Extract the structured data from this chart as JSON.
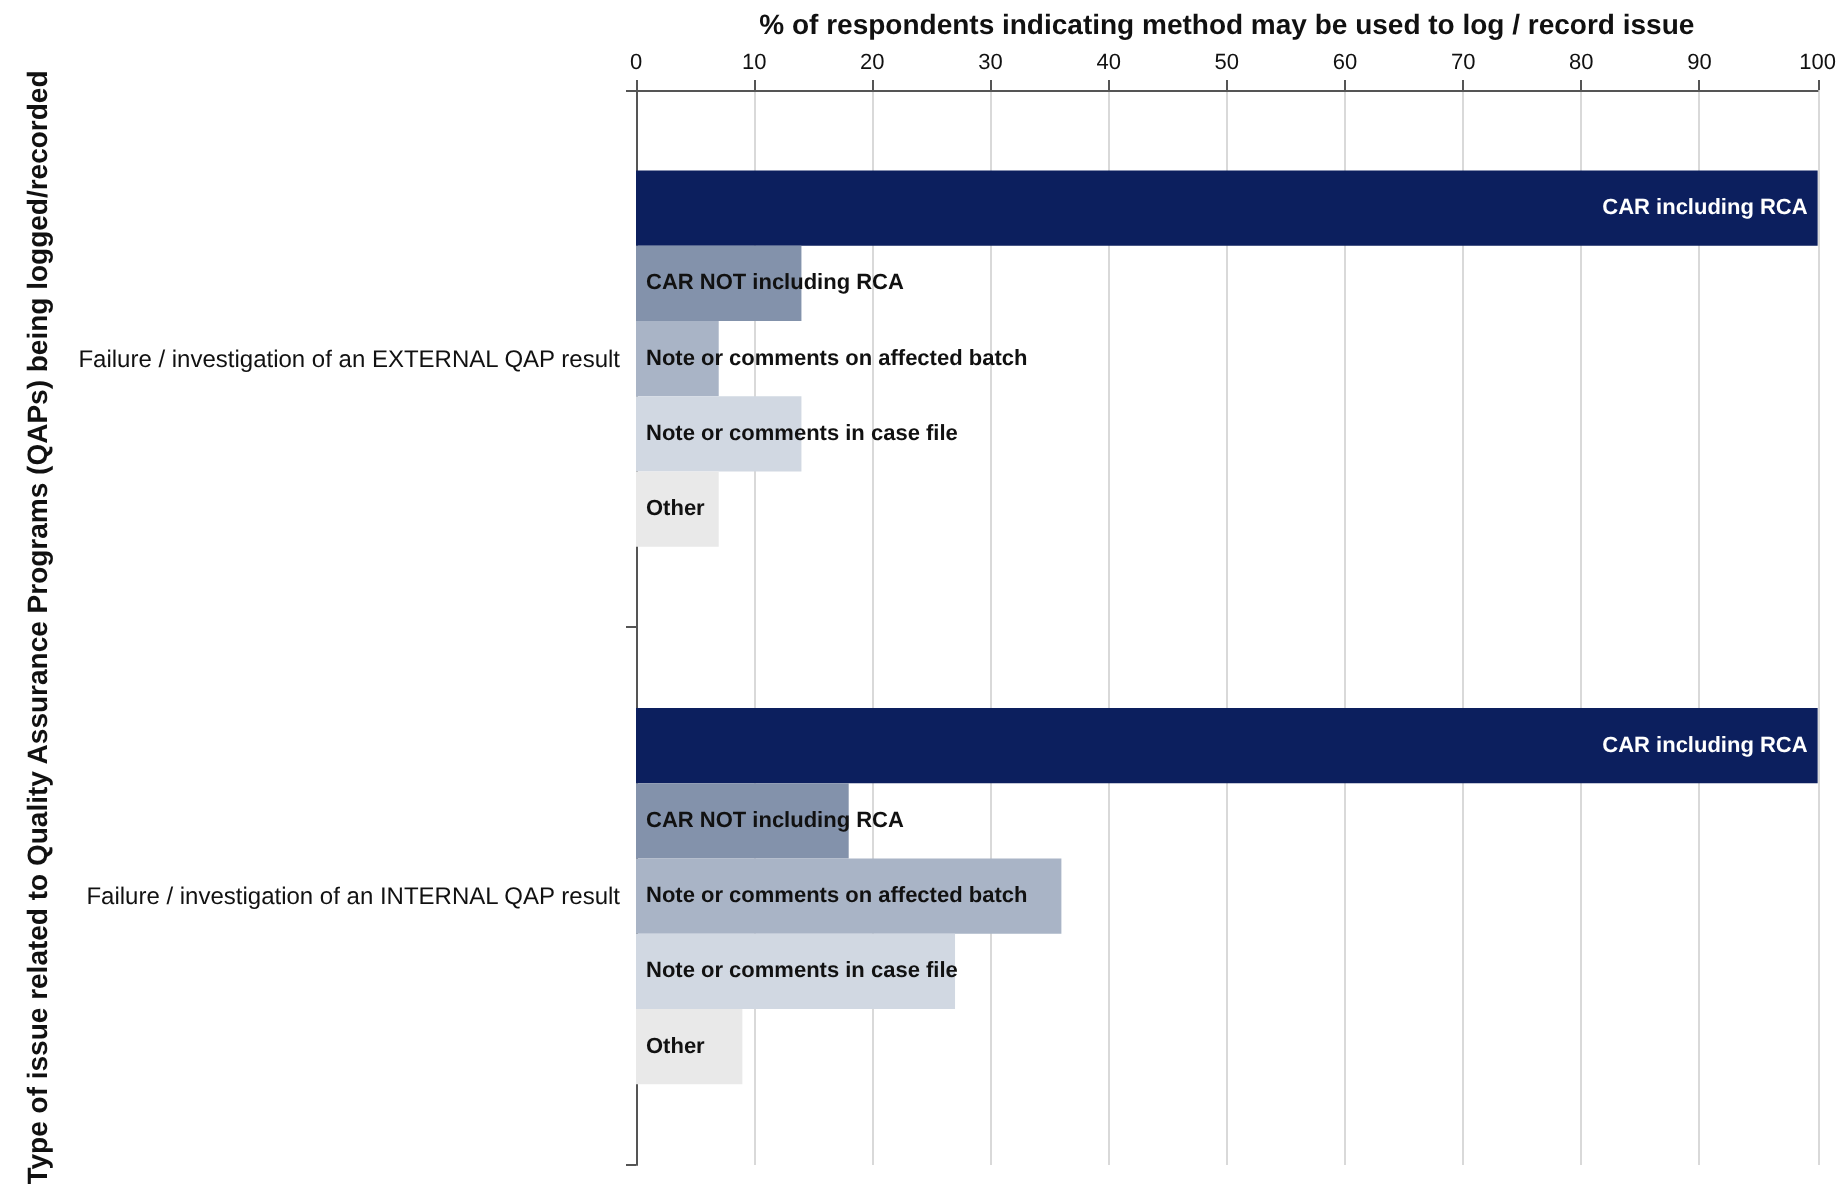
{
  "chart_data": {
    "type": "bar",
    "orientation": "horizontal",
    "xlabel": "% of respondents indicating method may be used to log / record issue",
    "ylabel": "Type of issue related to Quality Assurance Programs (QAPs) being logged/recorded",
    "categories": [
      "Failure / investigation of an EXTERNAL QAP result",
      "Failure / investigation of an INTERNAL QAP result"
    ],
    "series": [
      {
        "name": "CAR including RCA",
        "color": "#0c1f5e",
        "values": [
          100,
          100
        ]
      },
      {
        "name": "CAR NOT including RCA",
        "color": "#8392ab",
        "values": [
          14,
          18
        ]
      },
      {
        "name": "Note or comments on affected batch",
        "color": "#a9b4c6",
        "values": [
          7,
          36
        ]
      },
      {
        "name": "Note or comments in case file",
        "color": "#d1d8e2",
        "values": [
          14,
          27
        ]
      },
      {
        "name": "Other",
        "color": "#e9e9e9",
        "values": [
          7,
          9
        ]
      }
    ],
    "xlim": [
      0,
      100
    ],
    "xticks": [
      0,
      10,
      20,
      30,
      40,
      50,
      60,
      70,
      80,
      90,
      100
    ],
    "grid": "x",
    "legend": false
  }
}
